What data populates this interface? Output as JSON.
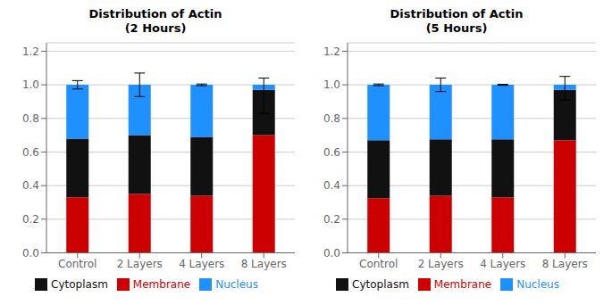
{
  "chart_data": [
    {
      "type": "bar",
      "title": "Distribution of Actin\n(2 Hours)",
      "stacked": true,
      "grid": true,
      "legend": "bottom",
      "categories": [
        "Control",
        "2 Layers",
        "4 Layers",
        "8 Layers"
      ],
      "series": [
        {
          "name": "Membrane",
          "color": "#CC0000",
          "values": [
            0.33,
            0.35,
            0.34,
            0.7
          ]
        },
        {
          "name": "Cytoplasm",
          "color": "#111111",
          "values": [
            0.35,
            0.35,
            0.35,
            0.27
          ]
        },
        {
          "name": "Nucleus",
          "color": "#1E90FF",
          "values": [
            0.32,
            0.3,
            0.31,
            0.03
          ]
        }
      ],
      "error_plus": [
        0.025,
        0.07,
        0.005,
        0.04
      ],
      "error_minus": [
        0.025,
        0.07,
        0.005,
        0.17
      ],
      "ylim": [
        0,
        1.25
      ],
      "yticks": [
        {
          "value": 0,
          "label": "0.0"
        },
        0.2,
        0.4,
        0.6,
        0.8,
        {
          "value": 1.0,
          "label": "1.0"
        },
        1.2
      ]
    },
    {
      "type": "bar",
      "title": "Distribution of Actin\n(5 Hours)",
      "stacked": true,
      "grid": true,
      "legend": "bottom",
      "categories": [
        "Control",
        "2 Layers",
        "4 Layers",
        "8 Layers"
      ],
      "series": [
        {
          "name": "Membrane",
          "color": "#CC0000",
          "values": [
            0.325,
            0.34,
            0.33,
            0.67
          ]
        },
        {
          "name": "Cytoplasm",
          "color": "#111111",
          "values": [
            0.345,
            0.335,
            0.345,
            0.3
          ]
        },
        {
          "name": "Nucleus",
          "color": "#1E90FF",
          "values": [
            0.33,
            0.325,
            0.325,
            0.03
          ]
        }
      ],
      "error_plus": [
        0.005,
        0.04,
        0.003,
        0.05
      ],
      "error_minus": [
        0.005,
        0.04,
        0.003,
        0.09
      ],
      "ylim": [
        0,
        1.25
      ],
      "yticks": [
        {
          "value": 0,
          "label": "0.0"
        },
        0.2,
        0.4,
        0.6,
        0.8,
        {
          "value": 1.0,
          "label": "1.0"
        },
        1.2
      ]
    }
  ]
}
